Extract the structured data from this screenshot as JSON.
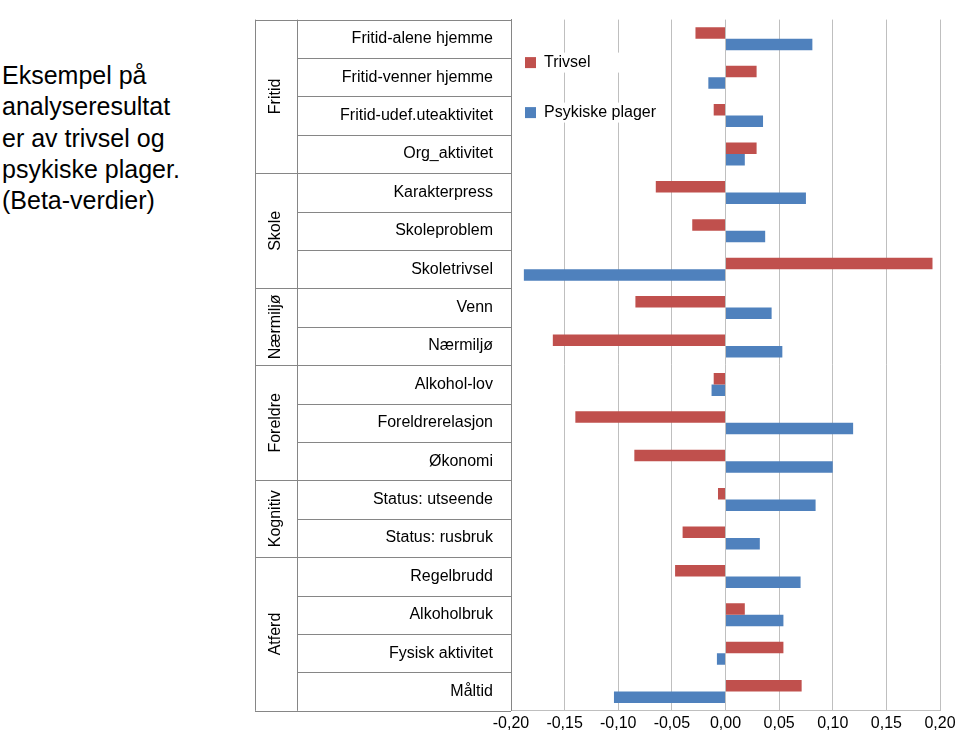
{
  "chart_data": {
    "type": "bar",
    "orientation": "horizontal",
    "title": "Eksempel på analyseresultater av trivsel og psykiske plager. (Beta-verdier)",
    "categories": [
      "Fritid-alene hjemme",
      "Fritid-venner hjemme",
      "Fritid-udef.uteaktivitet",
      "Org_aktivitet",
      "Karakterpress",
      "Skoleproblem",
      "Skoletrivsel",
      "Venn",
      "Nærmiljø",
      "Alkohol-lov",
      "Foreldrerelasjon",
      "Økonomi",
      "Status: utseende",
      "Status: rusbruk",
      "Regelbrudd",
      "Alkoholbruk",
      "Fysisk aktivitet",
      "Måltid"
    ],
    "groups": [
      {
        "label": "Fritid",
        "size": 4
      },
      {
        "label": "Skole",
        "size": 3
      },
      {
        "label": "Nærmiljø",
        "size": 2
      },
      {
        "label": "Foreldre",
        "size": 3
      },
      {
        "label": "Kognitiv",
        "size": 2
      },
      {
        "label": "Atferd",
        "size": 4
      }
    ],
    "series": [
      {
        "name": "Trivsel",
        "color": "#c0504d",
        "values": [
          -0.028,
          0.029,
          -0.011,
          0.029,
          -0.065,
          -0.031,
          0.193,
          -0.084,
          -0.161,
          -0.011,
          -0.14,
          -0.085,
          -0.007,
          -0.04,
          -0.047,
          0.018,
          0.054,
          0.071
        ]
      },
      {
        "name": "Psykiske plager",
        "color": "#4f81bd",
        "values": [
          0.081,
          -0.016,
          0.035,
          0.018,
          0.075,
          0.037,
          -0.188,
          0.043,
          0.053,
          -0.013,
          0.119,
          0.1,
          0.084,
          0.032,
          0.07,
          0.054,
          -0.008,
          -0.104
        ]
      }
    ],
    "xlim": [
      -0.2,
      0.2
    ],
    "xticks": [
      {
        "value": -0.2,
        "label": "-0,20"
      },
      {
        "value": -0.15,
        "label": "-0,15"
      },
      {
        "value": -0.1,
        "label": "-0,10"
      },
      {
        "value": -0.05,
        "label": "-0,05"
      },
      {
        "value": 0,
        "label": "0,00"
      },
      {
        "value": 0.05,
        "label": "0,05"
      },
      {
        "value": 0.1,
        "label": "0,10"
      },
      {
        "value": 0.15,
        "label": "0,15"
      },
      {
        "value": 0.2,
        "label": "0,20"
      }
    ],
    "grid": true,
    "legend": "upper left"
  }
}
